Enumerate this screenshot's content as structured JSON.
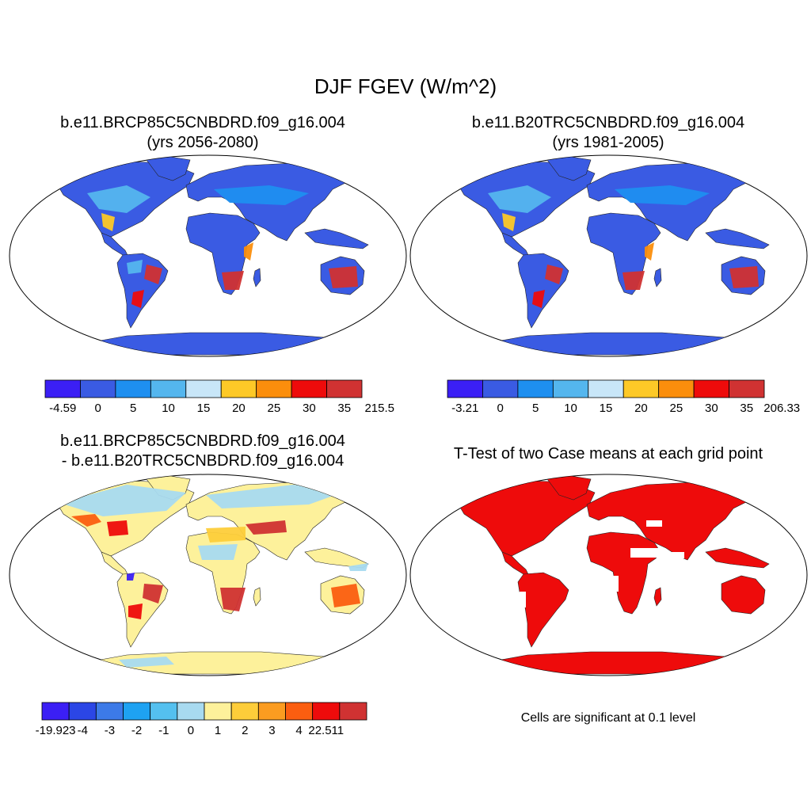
{
  "title": "DJF FGEV (W/m^2)",
  "panels": {
    "case": {
      "title_line1": "b.e11.BRCP85C5CNBDRD.f09_g16.004",
      "title_line2": "(yrs 2056-2080)",
      "colorbar": {
        "labels": [
          "-4.59",
          "0",
          "5",
          "10",
          "15",
          "20",
          "25",
          "30",
          "35",
          "215.5"
        ],
        "colors": [
          "#3b1ff5",
          "#3a5be3",
          "#1e8ff0",
          "#54b6ee",
          "#c8e6f8",
          "#fdc927",
          "#fb8e0c",
          "#ee0b0b",
          "#d03232"
        ]
      }
    },
    "control": {
      "title_line1": "b.e11.B20TRC5CNBDRD.f09_g16.004",
      "title_line2": "(yrs 1981-2005)",
      "colorbar": {
        "labels": [
          "-3.21",
          "0",
          "5",
          "10",
          "15",
          "20",
          "25",
          "30",
          "35",
          "206.33"
        ],
        "colors": [
          "#3b1ff5",
          "#3a5be3",
          "#1e8ff0",
          "#54b6ee",
          "#c8e6f8",
          "#fdc927",
          "#fb8e0c",
          "#ee0b0b",
          "#d03232"
        ]
      }
    },
    "difference": {
      "title_line1": "b.e11.BRCP85C5CNBDRD.f09_g16.004",
      "title_line2": "- b.e11.B20TRC5CNBDRD.f09_g16.004",
      "colorbar": {
        "labels": [
          "-19.923",
          "-4",
          "-3",
          "-2",
          "-1",
          "0",
          "1",
          "2",
          "3",
          "4",
          "22.511"
        ],
        "colors": [
          "#3b1ff5",
          "#2b46e6",
          "#3c7ae8",
          "#1ea2f2",
          "#54c0ef",
          "#a8daf0",
          "#fdf19b",
          "#fdcd3a",
          "#fb9c20",
          "#fb5e10",
          "#ee0b0b",
          "#d03232"
        ]
      }
    },
    "ttest": {
      "title": "T-Test of two Case means at each grid point",
      "note": "Cells are significant at 0.1 level",
      "color": "#ee0b0b"
    }
  },
  "colors": {
    "ocean": "#ffffff",
    "case_land": "#3a5be3",
    "diff_land": "#fdf19b"
  }
}
